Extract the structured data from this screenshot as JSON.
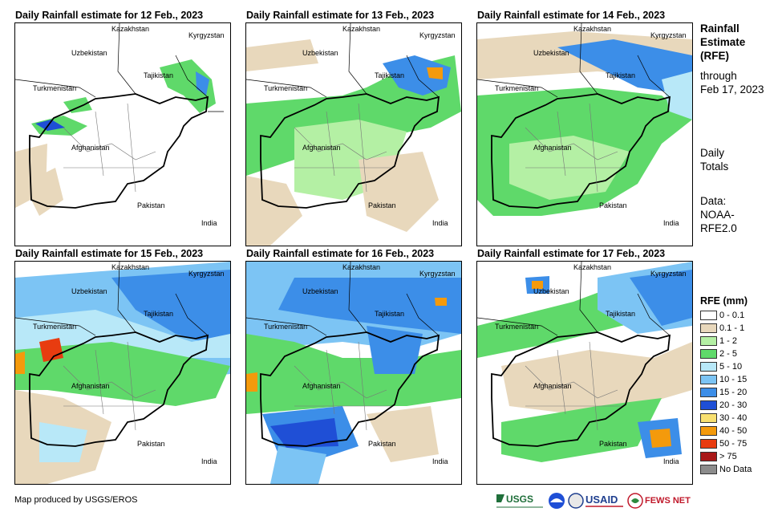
{
  "panels": [
    {
      "title": "Daily Rainfall estimate for 12 Feb., 2023"
    },
    {
      "title": "Daily Rainfall estimate for 13 Feb., 2023"
    },
    {
      "title": "Daily Rainfall estimate for 14 Feb., 2023"
    },
    {
      "title": "Daily Rainfall estimate for 15 Feb., 2023"
    },
    {
      "title": "Daily Rainfall estimate for 16 Feb., 2023"
    },
    {
      "title": "Daily Rainfall estimate for 17 Feb., 2023"
    }
  ],
  "map_labels": {
    "kazakhstan": "Kazakhstan",
    "kyrgyzstan": "Kyrgyzstan",
    "uzbekistan": "Uzbekistan",
    "tajikistan": "Tajikistan",
    "turkmenistan": "Turkmenistan",
    "afghanistan": "Afghanistan",
    "pakistan": "Pakistan",
    "india": "India"
  },
  "sidebar": {
    "title_lines": [
      "Rainfall",
      "Estimate",
      "(RFE)"
    ],
    "through_lines": [
      "through",
      "Feb 17, 2023"
    ],
    "totals_lines": [
      "Daily",
      "Totals"
    ],
    "data_lines": [
      "Data:",
      "NOAA-",
      "RFE2.0"
    ]
  },
  "legend": {
    "title": "RFE (mm)",
    "items": [
      {
        "label": "0 - 0.1",
        "color": "#ffffff"
      },
      {
        "label": "0.1 - 1",
        "color": "#e8d8bc"
      },
      {
        "label": "1 - 2",
        "color": "#b4f0a4"
      },
      {
        "label": "2 - 5",
        "color": "#5fd96a"
      },
      {
        "label": "5 - 10",
        "color": "#b8e8f8"
      },
      {
        "label": "10 - 15",
        "color": "#7cc4f4"
      },
      {
        "label": "15 - 20",
        "color": "#3c8ee8"
      },
      {
        "label": "20 - 30",
        "color": "#1f4fd6"
      },
      {
        "label": "30 - 40",
        "color": "#f8e070"
      },
      {
        "label": "40 - 50",
        "color": "#f49a0c"
      },
      {
        "label": "50 - 75",
        "color": "#e83c10"
      },
      {
        "label": "> 75",
        "color": "#a81818"
      },
      {
        "label": "No Data",
        "color": "#8c8c8c"
      }
    ]
  },
  "footer": {
    "credit": "Map produced by USGS/EROS"
  },
  "logos": {
    "usgs": "USGS",
    "usaid": "USAID",
    "fewsnet": "FEWS NET"
  }
}
